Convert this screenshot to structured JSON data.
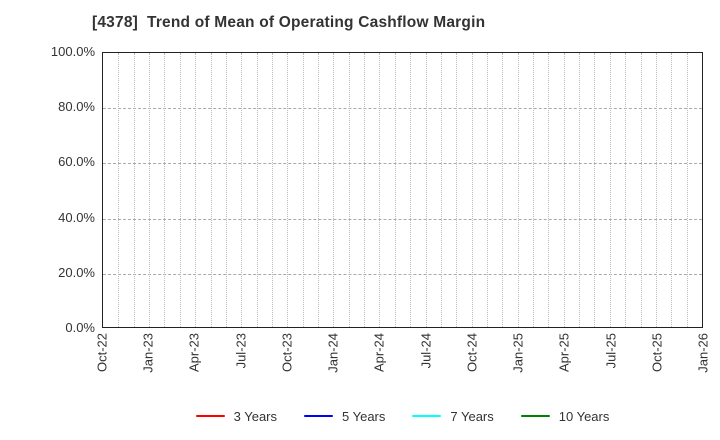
{
  "chart_data": {
    "type": "line",
    "title": "[4378]  Trend of Mean of Operating Cashflow Margin",
    "xlabel": "",
    "ylabel": "",
    "ylim": [
      0,
      100
    ],
    "y_tick_values": [
      0,
      20,
      40,
      60,
      80,
      100
    ],
    "y_tick_labels": [
      "0.0%",
      "20.0%",
      "40.0%",
      "60.0%",
      "80.0%",
      "100.0%"
    ],
    "x_tick_labels": [
      "Oct-22",
      "Jan-23",
      "Apr-23",
      "Jul-23",
      "Oct-23",
      "Jan-24",
      "Apr-24",
      "Jul-24",
      "Oct-24",
      "Jan-25",
      "Apr-25",
      "Jul-25",
      "Oct-25",
      "Jan-26"
    ],
    "x_total_months": 39,
    "x_major_tick_every_months": 3,
    "x_minor_gridline_every_months": 1,
    "grid": true,
    "legend_position": "bottom-center",
    "series": [
      {
        "name": "3 Years",
        "color": "#ff0000",
        "x": [],
        "values": []
      },
      {
        "name": "5 Years",
        "color": "#0000ff",
        "x": [],
        "values": []
      },
      {
        "name": "7 Years",
        "color": "#00ffff",
        "x": [],
        "values": []
      },
      {
        "name": "10 Years",
        "color": "#008000",
        "x": [],
        "values": []
      }
    ],
    "plot_is_empty": true
  },
  "colors": {
    "title_text": "#333333",
    "tick_text": "#333333",
    "plot_border": "#222222",
    "hgrid": "#aaaaaa",
    "vgrid": "#bbbbbb",
    "background": "#ffffff"
  }
}
